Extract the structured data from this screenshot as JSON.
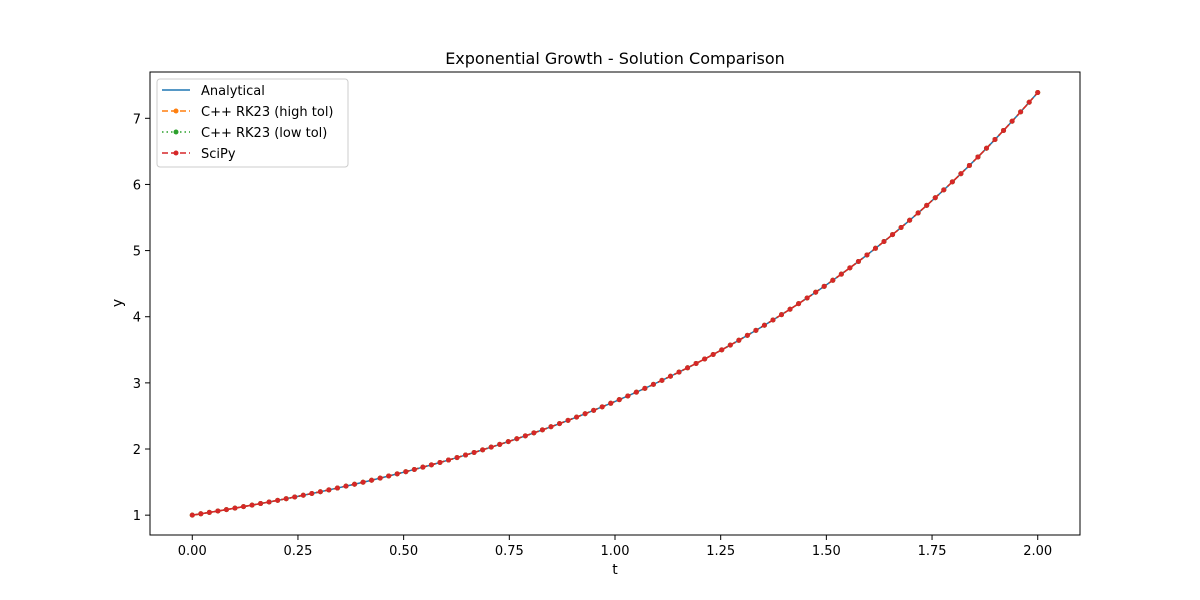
{
  "chart_data": {
    "type": "line",
    "title": "Exponential Growth - Solution Comparison",
    "xlabel": "t",
    "ylabel": "y",
    "xlim": [
      -0.1,
      2.1
    ],
    "ylim": [
      0.7,
      7.7
    ],
    "xticks": [
      0.0,
      0.25,
      0.5,
      0.75,
      1.0,
      1.25,
      1.5,
      1.75,
      2.0
    ],
    "xtick_labels": [
      "0.00",
      "0.25",
      "0.50",
      "0.75",
      "1.00",
      "1.25",
      "1.50",
      "1.75",
      "2.00"
    ],
    "yticks": [
      1,
      2,
      3,
      4,
      5,
      6,
      7
    ],
    "ytick_labels": [
      "1",
      "2",
      "3",
      "4",
      "5",
      "6",
      "7"
    ],
    "grid": false,
    "legend_position": "upper-left",
    "t": [
      0.0,
      0.0202,
      0.0404,
      0.0606,
      0.0808,
      0.101,
      0.1212,
      0.1414,
      0.1616,
      0.1818,
      0.202,
      0.2222,
      0.2424,
      0.2626,
      0.2828,
      0.303,
      0.3232,
      0.3434,
      0.3636,
      0.3838,
      0.404,
      0.4242,
      0.4444,
      0.4646,
      0.4848,
      0.5051,
      0.5253,
      0.5455,
      0.5657,
      0.5859,
      0.6061,
      0.6263,
      0.6465,
      0.6667,
      0.6869,
      0.7071,
      0.7273,
      0.7475,
      0.7677,
      0.7879,
      0.8081,
      0.8283,
      0.8485,
      0.8687,
      0.8889,
      0.9091,
      0.9293,
      0.9495,
      0.9697,
      0.9899,
      1.0101,
      1.0303,
      1.0505,
      1.0707,
      1.0909,
      1.1111,
      1.1313,
      1.1515,
      1.1717,
      1.1919,
      1.2121,
      1.2323,
      1.2525,
      1.2727,
      1.2929,
      1.3131,
      1.3333,
      1.3535,
      1.3737,
      1.3939,
      1.4141,
      1.4343,
      1.4545,
      1.4747,
      1.4949,
      1.5152,
      1.5354,
      1.5556,
      1.5758,
      1.596,
      1.6162,
      1.6364,
      1.6566,
      1.6768,
      1.697,
      1.7172,
      1.7374,
      1.7576,
      1.7778,
      1.798,
      1.8182,
      1.8384,
      1.8586,
      1.8788,
      1.899,
      1.9192,
      1.9394,
      1.9596,
      1.9798,
      2.0
    ],
    "series": [
      {
        "name": "Analytical",
        "color": "#1f77b4",
        "dash": "solid",
        "marker": "none",
        "values": [
          1.0,
          1.0204,
          1.0412,
          1.0625,
          1.0842,
          1.1063,
          1.1289,
          1.1519,
          1.1754,
          1.1994,
          1.2239,
          1.2488,
          1.2743,
          1.3003,
          1.3269,
          1.3539,
          1.3816,
          1.4098,
          1.4385,
          1.4679,
          1.4978,
          1.5284,
          1.5596,
          1.5914,
          1.6239,
          1.657,
          1.6909,
          1.7254,
          1.7606,
          1.7965,
          1.8332,
          1.8706,
          1.9088,
          1.9477,
          1.9875,
          2.0281,
          2.0695,
          2.1117,
          2.1548,
          2.1988,
          2.2437,
          2.2895,
          2.3362,
          2.3839,
          2.4325,
          2.4822,
          2.5328,
          2.5845,
          2.6373,
          2.6911,
          2.746,
          2.8021,
          2.8593,
          2.9176,
          2.9772,
          3.0379,
          3.0999,
          3.1632,
          3.2278,
          3.2936,
          3.3609,
          3.4295,
          3.4994,
          3.5709,
          3.6437,
          3.7181,
          3.794,
          3.8714,
          3.9504,
          4.0311,
          4.1133,
          4.1973,
          4.283,
          4.3704,
          4.4596,
          4.5506,
          4.6435,
          4.7383,
          4.835,
          4.9337,
          5.0344,
          5.1371,
          5.242,
          5.349,
          5.4581,
          5.5695,
          5.6832,
          5.7992,
          5.9175,
          6.0383,
          6.1616,
          6.2873,
          6.4156,
          6.5466,
          6.6802,
          6.8165,
          6.9557,
          7.0976,
          7.2425,
          7.3891
        ]
      },
      {
        "name": "C++ RK23 (high tol)",
        "color": "#ff7f0e",
        "dash": "dashed",
        "marker": "dot",
        "values": [
          1.0,
          1.0204,
          1.0412,
          1.0625,
          1.0842,
          1.1063,
          1.1289,
          1.1519,
          1.1754,
          1.1994,
          1.2239,
          1.2488,
          1.2743,
          1.3003,
          1.3269,
          1.3539,
          1.3816,
          1.4098,
          1.4385,
          1.4679,
          1.4978,
          1.5284,
          1.5596,
          1.5914,
          1.6239,
          1.657,
          1.6909,
          1.7254,
          1.7606,
          1.7965,
          1.8332,
          1.8706,
          1.9088,
          1.9477,
          1.9875,
          2.0281,
          2.0695,
          2.1117,
          2.1548,
          2.1988,
          2.2437,
          2.2895,
          2.3362,
          2.3839,
          2.4325,
          2.4822,
          2.5328,
          2.5845,
          2.6373,
          2.6911,
          2.746,
          2.8021,
          2.8593,
          2.9176,
          2.9772,
          3.0379,
          3.0999,
          3.1632,
          3.2278,
          3.2936,
          3.3609,
          3.4295,
          3.4994,
          3.5709,
          3.6437,
          3.7181,
          3.794,
          3.8714,
          3.9504,
          4.0311,
          4.1133,
          4.1973,
          4.283,
          4.3704,
          4.4596,
          4.5506,
          4.6435,
          4.7383,
          4.835,
          4.9337,
          5.0344,
          5.1371,
          5.242,
          5.349,
          5.4581,
          5.5695,
          5.6832,
          5.7992,
          5.9175,
          6.0383,
          6.1616,
          6.2873,
          6.4156,
          6.5466,
          6.6802,
          6.8165,
          6.9557,
          7.0976,
          7.2425,
          7.3891
        ]
      },
      {
        "name": "C++ RK23 (low tol)",
        "color": "#2ca02c",
        "dash": "dotted",
        "marker": "dot",
        "values": [
          1.0,
          1.0204,
          1.0412,
          1.0625,
          1.0842,
          1.1063,
          1.1289,
          1.1519,
          1.1754,
          1.1994,
          1.2239,
          1.2488,
          1.2743,
          1.3003,
          1.3269,
          1.3539,
          1.3816,
          1.4098,
          1.4385,
          1.4679,
          1.4978,
          1.5284,
          1.5596,
          1.5914,
          1.6239,
          1.657,
          1.6909,
          1.7254,
          1.7606,
          1.7965,
          1.8332,
          1.8706,
          1.9088,
          1.9477,
          1.9875,
          2.0281,
          2.0695,
          2.1117,
          2.1548,
          2.1988,
          2.2437,
          2.2895,
          2.3362,
          2.3839,
          2.4325,
          2.4822,
          2.5328,
          2.5845,
          2.6373,
          2.6911,
          2.746,
          2.8021,
          2.8593,
          2.9176,
          2.9772,
          3.0379,
          3.0999,
          3.1632,
          3.2278,
          3.2936,
          3.3609,
          3.4295,
          3.4994,
          3.5709,
          3.6437,
          3.7181,
          3.794,
          3.8714,
          3.9504,
          4.0311,
          4.1133,
          4.1973,
          4.283,
          4.3704,
          4.4596,
          4.5506,
          4.6435,
          4.7383,
          4.835,
          4.9337,
          5.0344,
          5.1371,
          5.242,
          5.349,
          5.4581,
          5.5695,
          5.6832,
          5.7992,
          5.9175,
          6.0383,
          6.1616,
          6.2873,
          6.4156,
          6.5466,
          6.6802,
          6.8165,
          6.9557,
          7.0976,
          7.2425,
          7.3891
        ]
      },
      {
        "name": "SciPy",
        "color": "#d62728",
        "dash": "dashed",
        "marker": "dot",
        "values": [
          1.0,
          1.0204,
          1.0412,
          1.0625,
          1.0842,
          1.1063,
          1.1289,
          1.1519,
          1.1754,
          1.1994,
          1.2239,
          1.2488,
          1.2743,
          1.3003,
          1.3269,
          1.3539,
          1.3816,
          1.4098,
          1.4385,
          1.4679,
          1.4978,
          1.5284,
          1.5596,
          1.5914,
          1.6239,
          1.657,
          1.6909,
          1.7254,
          1.7606,
          1.7965,
          1.8332,
          1.8706,
          1.9088,
          1.9477,
          1.9875,
          2.0281,
          2.0695,
          2.1117,
          2.1548,
          2.1988,
          2.2437,
          2.2895,
          2.3362,
          2.3839,
          2.4325,
          2.4822,
          2.5328,
          2.5845,
          2.6373,
          2.6911,
          2.746,
          2.8021,
          2.8593,
          2.9176,
          2.9772,
          3.0379,
          3.0999,
          3.1632,
          3.2278,
          3.2936,
          3.3609,
          3.4295,
          3.4994,
          3.5709,
          3.6437,
          3.7181,
          3.794,
          3.8714,
          3.9504,
          4.0311,
          4.1133,
          4.1973,
          4.283,
          4.3704,
          4.4596,
          4.5506,
          4.6435,
          4.7383,
          4.835,
          4.9337,
          5.0344,
          5.1371,
          5.242,
          5.349,
          5.4581,
          5.5695,
          5.6832,
          5.7992,
          5.9175,
          6.0383,
          6.1616,
          6.2873,
          6.4156,
          6.5466,
          6.6802,
          6.8165,
          6.9557,
          7.0976,
          7.2425,
          7.3891
        ]
      }
    ]
  }
}
